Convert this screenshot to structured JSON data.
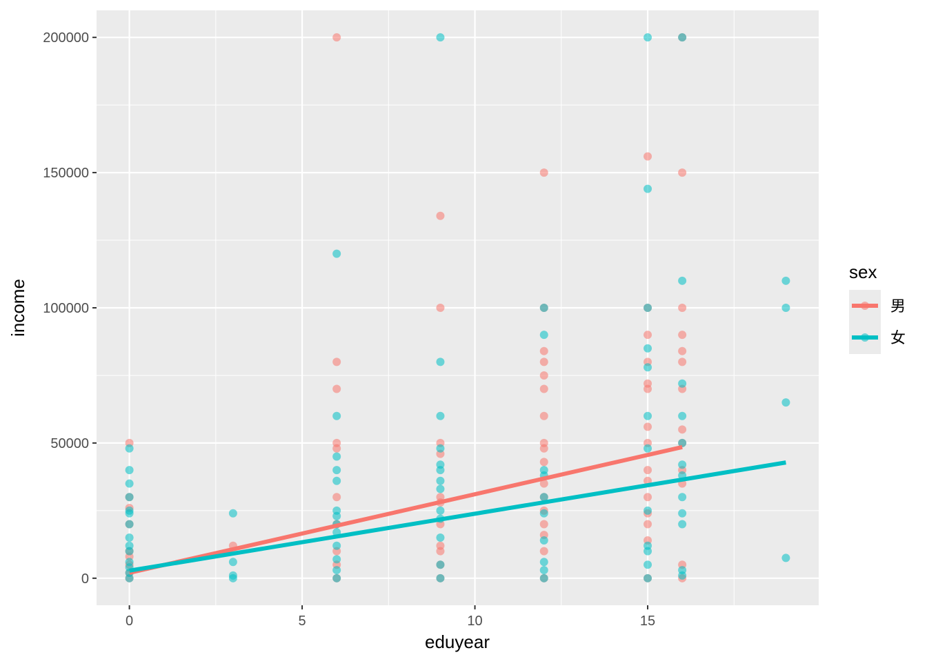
{
  "chart_data": {
    "type": "scatter",
    "title": "",
    "xlabel": "eduyear",
    "ylabel": "income",
    "xlim": [
      -0.95,
      19.95
    ],
    "ylim": [
      -10000,
      210000
    ],
    "x_ticks": [
      0,
      5,
      10,
      15
    ],
    "y_ticks": [
      0,
      50000,
      100000,
      150000,
      200000
    ],
    "grid": true,
    "legend": {
      "title": "sex",
      "placement": "right"
    },
    "series": [
      {
        "name": "男",
        "color": "#F8766D",
        "points": [
          [
            0,
            50000
          ],
          [
            0,
            30000
          ],
          [
            0,
            26000
          ],
          [
            0,
            20000
          ],
          [
            0,
            10000
          ],
          [
            0,
            8000
          ],
          [
            0,
            5000
          ],
          [
            0,
            2000
          ],
          [
            0,
            0
          ],
          [
            3,
            12000
          ],
          [
            6,
            200000
          ],
          [
            6,
            80000
          ],
          [
            6,
            70000
          ],
          [
            6,
            50000
          ],
          [
            6,
            48000
          ],
          [
            6,
            30000
          ],
          [
            6,
            20000
          ],
          [
            6,
            10000
          ],
          [
            6,
            5000
          ],
          [
            6,
            0
          ],
          [
            9,
            134000
          ],
          [
            9,
            100000
          ],
          [
            9,
            50000
          ],
          [
            9,
            46000
          ],
          [
            9,
            30000
          ],
          [
            9,
            28000
          ],
          [
            9,
            20000
          ],
          [
            9,
            12000
          ],
          [
            9,
            10000
          ],
          [
            9,
            5000
          ],
          [
            9,
            0
          ],
          [
            12,
            150000
          ],
          [
            12,
            100000
          ],
          [
            12,
            84000
          ],
          [
            12,
            80000
          ],
          [
            12,
            75000
          ],
          [
            12,
            70000
          ],
          [
            12,
            60000
          ],
          [
            12,
            50000
          ],
          [
            12,
            48000
          ],
          [
            12,
            43000
          ],
          [
            12,
            35000
          ],
          [
            12,
            30000
          ],
          [
            12,
            25000
          ],
          [
            12,
            20000
          ],
          [
            12,
            16000
          ],
          [
            12,
            10000
          ],
          [
            12,
            0
          ],
          [
            15,
            156000
          ],
          [
            15,
            100000
          ],
          [
            15,
            90000
          ],
          [
            15,
            80000
          ],
          [
            15,
            72000
          ],
          [
            15,
            70000
          ],
          [
            15,
            56000
          ],
          [
            15,
            50000
          ],
          [
            15,
            40000
          ],
          [
            15,
            36000
          ],
          [
            15,
            30000
          ],
          [
            15,
            24000
          ],
          [
            15,
            20000
          ],
          [
            15,
            14000
          ],
          [
            15,
            0
          ],
          [
            16,
            200000
          ],
          [
            16,
            150000
          ],
          [
            16,
            100000
          ],
          [
            16,
            90000
          ],
          [
            16,
            84000
          ],
          [
            16,
            80000
          ],
          [
            16,
            70000
          ],
          [
            16,
            55000
          ],
          [
            16,
            50000
          ],
          [
            16,
            40000
          ],
          [
            16,
            35000
          ],
          [
            16,
            5000
          ],
          [
            16,
            0
          ]
        ],
        "fit_line": [
          [
            0,
            2000
          ],
          [
            16,
            48500
          ]
        ]
      },
      {
        "name": "女",
        "color": "#00BFC4",
        "points": [
          [
            0,
            48000
          ],
          [
            0,
            40000
          ],
          [
            0,
            35000
          ],
          [
            0,
            30000
          ],
          [
            0,
            25000
          ],
          [
            0,
            24000
          ],
          [
            0,
            20000
          ],
          [
            0,
            15000
          ],
          [
            0,
            12000
          ],
          [
            0,
            10000
          ],
          [
            0,
            6000
          ],
          [
            0,
            4000
          ],
          [
            0,
            2000
          ],
          [
            0,
            0
          ],
          [
            3,
            24000
          ],
          [
            3,
            6000
          ],
          [
            3,
            1000
          ],
          [
            3,
            0
          ],
          [
            6,
            120000
          ],
          [
            6,
            60000
          ],
          [
            6,
            45000
          ],
          [
            6,
            40000
          ],
          [
            6,
            36000
          ],
          [
            6,
            25000
          ],
          [
            6,
            23000
          ],
          [
            6,
            20000
          ],
          [
            6,
            17000
          ],
          [
            6,
            12000
          ],
          [
            6,
            7000
          ],
          [
            6,
            3000
          ],
          [
            6,
            0
          ],
          [
            9,
            200000
          ],
          [
            9,
            80000
          ],
          [
            9,
            60000
          ],
          [
            9,
            48000
          ],
          [
            9,
            42000
          ],
          [
            9,
            40000
          ],
          [
            9,
            36000
          ],
          [
            9,
            33000
          ],
          [
            9,
            25000
          ],
          [
            9,
            22000
          ],
          [
            9,
            15000
          ],
          [
            9,
            5000
          ],
          [
            9,
            0
          ],
          [
            12,
            100000
          ],
          [
            12,
            90000
          ],
          [
            12,
            40000
          ],
          [
            12,
            38000
          ],
          [
            12,
            30000
          ],
          [
            12,
            24000
          ],
          [
            12,
            14000
          ],
          [
            12,
            6000
          ],
          [
            12,
            3000
          ],
          [
            12,
            0
          ],
          [
            15,
            200000
          ],
          [
            15,
            144000
          ],
          [
            15,
            100000
          ],
          [
            15,
            85000
          ],
          [
            15,
            78000
          ],
          [
            15,
            60000
          ],
          [
            15,
            48000
          ],
          [
            15,
            25000
          ],
          [
            15,
            12000
          ],
          [
            15,
            10000
          ],
          [
            15,
            5000
          ],
          [
            15,
            0
          ],
          [
            16,
            200000
          ],
          [
            16,
            110000
          ],
          [
            16,
            72000
          ],
          [
            16,
            60000
          ],
          [
            16,
            50000
          ],
          [
            16,
            42000
          ],
          [
            16,
            38000
          ],
          [
            16,
            30000
          ],
          [
            16,
            24000
          ],
          [
            16,
            20000
          ],
          [
            16,
            3000
          ],
          [
            16,
            1000
          ],
          [
            19,
            110000
          ],
          [
            19,
            100000
          ],
          [
            19,
            65000
          ],
          [
            19,
            7500
          ]
        ],
        "fit_line": [
          [
            0,
            2800
          ],
          [
            19,
            42800
          ]
        ]
      }
    ]
  }
}
